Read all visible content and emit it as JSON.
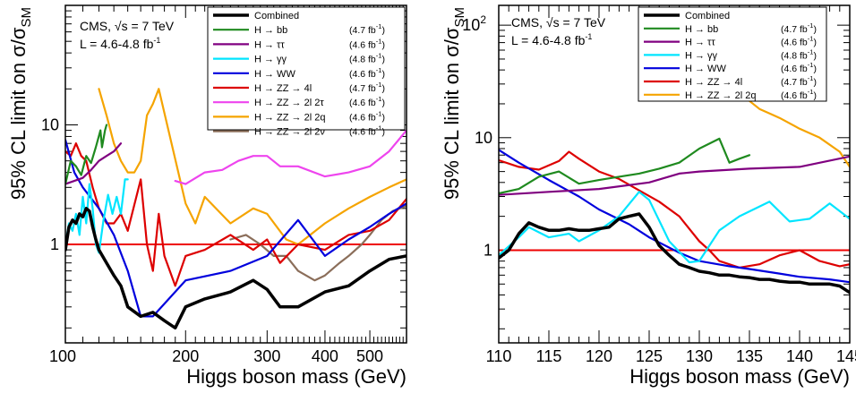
{
  "chart_data": [
    {
      "type": "line",
      "xlabel": "Higgs boson mass (GeV)",
      "ylabel": "95% CL limit on σ/σ",
      "ylabel_sub": "SM",
      "x_scale": "log",
      "y_scale": "log",
      "xlim": [
        110,
        600
      ],
      "ylim": [
        0.15,
        100
      ],
      "x_ticks": [
        {
          "v": 100,
          "label": "100"
        },
        {
          "v": 200,
          "label": "200"
        },
        {
          "v": 300,
          "label": "300"
        },
        {
          "v": 400,
          "label": "400"
        },
        {
          "v": 500,
          "label": "500"
        }
      ],
      "y_ticks": [
        {
          "v": 1,
          "label": "1"
        },
        {
          "v": 10,
          "label": "10"
        }
      ],
      "annotation": {
        "experiment": "CMS,",
        "sqrt_s": "√s",
        "energy": " = 7 TeV",
        "lumi_prefix": "L = 4.6-4.8 fb",
        "lumi_exp": "-1"
      },
      "reference_line": {
        "y": 1,
        "color": "#ee0000"
      },
      "series": [
        {
          "name": "Combined",
          "lumi": "",
          "color": "#000000",
          "width": 3.5,
          "x": [
            110,
            112,
            114,
            116,
            118,
            120,
            122,
            124,
            126,
            128,
            130,
            135,
            140,
            145,
            150,
            160,
            170,
            180,
            190,
            200,
            220,
            250,
            280,
            300,
            320,
            350,
            400,
            450,
            500,
            550,
            600
          ],
          "y": [
            0.9,
            1.4,
            1.6,
            1.5,
            1.8,
            1.7,
            2.0,
            1.9,
            1.4,
            1.1,
            0.9,
            0.7,
            0.55,
            0.45,
            0.3,
            0.25,
            0.27,
            0.23,
            0.2,
            0.3,
            0.35,
            0.4,
            0.5,
            0.42,
            0.3,
            0.3,
            0.4,
            0.45,
            0.6,
            0.75,
            0.8
          ]
        },
        {
          "name": "H → bb",
          "lumi": "(4.7 fb",
          "color": "#1f8a1f",
          "width": 2.2,
          "x": [
            110,
            113,
            116,
            119,
            122,
            125,
            128,
            131,
            132,
            134,
            135
          ],
          "y": [
            3.2,
            5,
            4.5,
            3.8,
            5.5,
            4.8,
            6.5,
            9,
            6.5,
            9,
            10
          ]
        },
        {
          "name": "H → ττ",
          "lumi": "(4.6 fb",
          "color": "#800080",
          "width": 2.2,
          "x": [
            110,
            115,
            120,
            125,
            130,
            135,
            140,
            145
          ],
          "y": [
            3.2,
            3.4,
            3.6,
            4.2,
            5,
            5.5,
            6,
            7
          ]
        },
        {
          "name": "H → γγ",
          "lumi": "(4.8 fb",
          "color": "#00e5ff",
          "width": 2.2,
          "x": [
            110,
            112,
            114,
            116,
            118,
            120,
            122,
            124,
            126,
            128,
            130,
            133,
            136,
            139,
            142,
            145,
            148,
            150
          ],
          "y": [
            1.0,
            1.5,
            1.3,
            1.8,
            1.2,
            2.5,
            1.5,
            3.2,
            2.0,
            1.0,
            0.85,
            1.6,
            2.6,
            1.8,
            2.5,
            1.8,
            3.5,
            3.5
          ]
        },
        {
          "name": "H → WW",
          "lumi": "(4.6 fb",
          "color": "#0000dd",
          "width": 2.2,
          "x": [
            110,
            115,
            120,
            130,
            140,
            150,
            160,
            170,
            200,
            250,
            300,
            350,
            400,
            450,
            500,
            550,
            600
          ],
          "y": [
            7.5,
            4,
            3,
            2,
            1.2,
            0.6,
            0.25,
            0.25,
            0.5,
            0.6,
            0.8,
            1.6,
            0.8,
            1.1,
            1.4,
            1.8,
            2.2
          ]
        },
        {
          "name": "H → ZZ → 4l",
          "lumi": "(4.7 fb",
          "color": "#dd0000",
          "width": 2.2,
          "x": [
            110,
            113,
            116,
            119,
            122,
            126,
            130,
            135,
            140,
            145,
            150,
            160,
            165,
            170,
            175,
            180,
            190,
            200,
            220,
            250,
            280,
            300,
            320,
            350,
            400,
            450,
            500,
            550,
            600
          ],
          "y": [
            6,
            5.5,
            7,
            5.5,
            5,
            3,
            2,
            1.5,
            1.5,
            1.8,
            1.3,
            3.5,
            1.0,
            0.6,
            1.8,
            0.8,
            0.45,
            0.8,
            0.9,
            1.2,
            0.9,
            1.1,
            0.7,
            1.0,
            0.9,
            1.2,
            1.3,
            1.6,
            2.4
          ]
        },
        {
          "name": "H → ZZ → 2l 2τ",
          "lumi": "(4.6 fb",
          "color": "#ee44ee",
          "width": 2.2,
          "x": [
            190,
            200,
            220,
            240,
            260,
            280,
            300,
            320,
            350,
            400,
            450,
            500,
            550,
            600
          ],
          "y": [
            3.4,
            3.2,
            4,
            4.2,
            5,
            5.5,
            5.5,
            4.5,
            4.5,
            3.7,
            4.0,
            4.5,
            6,
            9
          ]
        },
        {
          "name": "H → ZZ → 2l 2q",
          "lumi": "(4.6 fb",
          "color": "#f5a400",
          "width": 2.2,
          "x": [
            130,
            135,
            140,
            145,
            150,
            155,
            160,
            165,
            170,
            175,
            200,
            210,
            220,
            250,
            280,
            300,
            330,
            350,
            400,
            450,
            500,
            550,
            600
          ],
          "y": [
            20,
            12,
            7,
            5,
            4,
            4,
            5,
            12,
            15,
            20,
            2.2,
            1.5,
            2.5,
            1.5,
            2.0,
            1.8,
            1.1,
            1.0,
            1.5,
            2.0,
            2.5,
            3.0,
            3.5
          ]
        },
        {
          "name": "H → ZZ → 2l 2ν",
          "lumi": "(4.6 fb",
          "color": "#8b6e5a",
          "width": 2.2,
          "x": [
            250,
            270,
            290,
            310,
            330,
            350,
            380,
            400,
            430,
            450,
            480,
            500,
            530,
            560,
            600
          ],
          "y": [
            1.1,
            1.2,
            1.0,
            0.8,
            0.8,
            0.6,
            0.5,
            0.55,
            0.7,
            0.8,
            1.0,
            1.2,
            1.6,
            1.9,
            2.1
          ]
        }
      ]
    },
    {
      "type": "line",
      "xlabel": "Higgs boson mass (GeV)",
      "ylabel": "95% CL limit on σ/σ",
      "ylabel_sub": "SM",
      "x_scale": "linear",
      "y_scale": "log",
      "xlim": [
        110,
        145
      ],
      "ylim": [
        0.15,
        150
      ],
      "x_ticks": [
        {
          "v": 110,
          "label": "110"
        },
        {
          "v": 115,
          "label": "115"
        },
        {
          "v": 120,
          "label": "120"
        },
        {
          "v": 125,
          "label": "125"
        },
        {
          "v": 130,
          "label": "130"
        },
        {
          "v": 135,
          "label": "135"
        },
        {
          "v": 140,
          "label": "140"
        },
        {
          "v": 145,
          "label": "145"
        }
      ],
      "y_ticks": [
        {
          "v": 1,
          "label": "1"
        },
        {
          "v": 10,
          "label": "10"
        },
        {
          "v": 100,
          "label": "10",
          "sup": "2"
        }
      ],
      "annotation": {
        "experiment": "CMS,",
        "sqrt_s": "√s",
        "energy": " = 7 TeV",
        "lumi_prefix": "L = 4.6-4.8 fb",
        "lumi_exp": "-1"
      },
      "reference_line": {
        "y": 1,
        "color": "#ee0000"
      },
      "series": [
        {
          "name": "Combined",
          "lumi": "",
          "color": "#000000",
          "width": 3.5,
          "x": [
            110,
            111,
            112,
            113,
            114,
            115,
            116,
            117,
            118,
            119,
            120,
            121,
            122,
            123,
            124,
            125,
            126,
            127,
            128,
            129,
            130,
            131,
            132,
            133,
            134,
            135,
            136,
            137,
            138,
            139,
            140,
            141,
            142,
            143,
            144,
            145
          ],
          "y": [
            0.85,
            1.0,
            1.4,
            1.75,
            1.6,
            1.5,
            1.5,
            1.55,
            1.5,
            1.5,
            1.55,
            1.6,
            1.9,
            2.0,
            2.1,
            1.6,
            1.1,
            0.9,
            0.75,
            0.7,
            0.65,
            0.63,
            0.6,
            0.6,
            0.58,
            0.57,
            0.55,
            0.55,
            0.53,
            0.52,
            0.52,
            0.5,
            0.5,
            0.5,
            0.48,
            0.42
          ]
        },
        {
          "name": "H → bb",
          "lumi": "(4.7 fb",
          "color": "#1f8a1f",
          "width": 2.2,
          "x": [
            110,
            112,
            114,
            116,
            118,
            120,
            122,
            124,
            126,
            128,
            130,
            132,
            133,
            134,
            135
          ],
          "y": [
            3.2,
            3.5,
            4.5,
            5,
            3.9,
            4.2,
            4.5,
            4.8,
            5.3,
            6,
            8,
            9.8,
            6,
            6.5,
            7
          ]
        },
        {
          "name": "H → ττ",
          "lumi": "(4.6 fb",
          "color": "#800080",
          "width": 2.2,
          "x": [
            110,
            115,
            120,
            125,
            128,
            130,
            135,
            140,
            145
          ],
          "y": [
            3.1,
            3.3,
            3.5,
            4.0,
            4.8,
            5.0,
            5.3,
            5.5,
            6.8
          ]
        },
        {
          "name": "H → γγ",
          "lumi": "(4.8 fb",
          "color": "#00e5ff",
          "width": 2.2,
          "x": [
            110,
            112,
            113,
            115,
            117,
            118,
            120,
            122,
            124,
            125,
            127,
            129,
            130,
            132,
            134,
            137,
            139,
            141,
            143,
            145
          ],
          "y": [
            0.9,
            1.3,
            1.6,
            1.3,
            1.4,
            1.2,
            1.5,
            2.0,
            3.3,
            2.8,
            1.2,
            0.78,
            0.8,
            1.5,
            2.0,
            2.7,
            1.8,
            1.9,
            2.6,
            1.9
          ]
        },
        {
          "name": "H → WW",
          "lumi": "(4.6 fb",
          "color": "#0000dd",
          "width": 2.2,
          "x": [
            110,
            112,
            115,
            118,
            120,
            123,
            125,
            128,
            130,
            133,
            135,
            138,
            140,
            143,
            145
          ],
          "y": [
            7.8,
            6.0,
            4.2,
            3.0,
            2.3,
            1.7,
            1.3,
            0.95,
            0.8,
            0.72,
            0.68,
            0.62,
            0.58,
            0.55,
            0.52
          ]
        },
        {
          "name": "H → ZZ → 4l",
          "lumi": "(4.7 fb",
          "color": "#dd0000",
          "width": 2.2,
          "x": [
            110,
            112,
            114,
            116,
            117,
            118,
            120,
            122,
            124,
            126,
            128,
            130,
            131,
            132,
            134,
            136,
            138,
            140,
            142,
            144,
            145
          ],
          "y": [
            6.3,
            5.5,
            5.2,
            6.2,
            7.5,
            6.5,
            5.0,
            4.3,
            3.4,
            2.7,
            2.0,
            1.2,
            1.0,
            0.8,
            0.7,
            0.75,
            0.9,
            1.0,
            0.8,
            0.72,
            0.75
          ]
        },
        {
          "name": "H → ZZ → 2l 2q",
          "lumi": "(4.6 fb",
          "color": "#f5a400",
          "width": 2.2,
          "x": [
            132,
            134,
            136,
            138,
            140,
            142,
            144,
            145
          ],
          "y": [
            35,
            25,
            18,
            15,
            12,
            10,
            7.5,
            5.5
          ]
        }
      ]
    }
  ]
}
